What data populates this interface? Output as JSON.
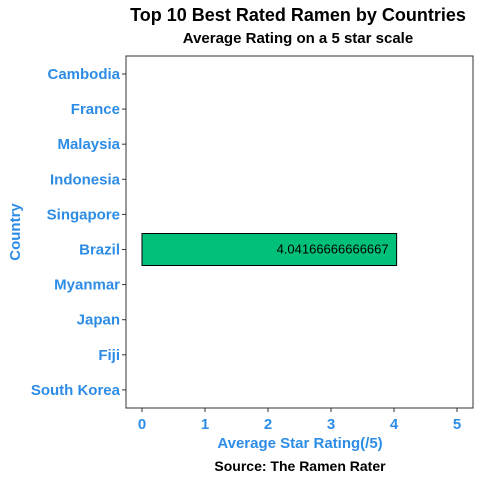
{
  "chart_data": {
    "type": "bar",
    "orientation": "horizontal",
    "title": "Top 10 Best Rated Ramen by Countries",
    "subtitle": "Average Rating on a 5 star scale",
    "xlabel": "Average Star Rating(/5)",
    "ylabel": "Country",
    "caption": "Source: The Ramen Rater",
    "categories": [
      "Cambodia",
      "France",
      "Malaysia",
      "Indonesia",
      "Singapore",
      "Brazil",
      "Myanmar",
      "Japan",
      "Fiji",
      "South Korea"
    ],
    "values": [
      null,
      null,
      null,
      null,
      null,
      4.04166666666667,
      null,
      null,
      null,
      null
    ],
    "data_labels": [
      "",
      "",
      "",
      "",
      "",
      "4.04166666666667",
      "",
      "",
      "",
      ""
    ],
    "x_ticks": [
      "0",
      "1",
      "2",
      "3",
      "4",
      "5"
    ],
    "xlim": [
      0,
      5
    ],
    "grid": false,
    "legend": "none",
    "colors": {
      "bar": "#00c07a",
      "axis_text": "#2d8de6",
      "panel_border": "#333333"
    }
  }
}
